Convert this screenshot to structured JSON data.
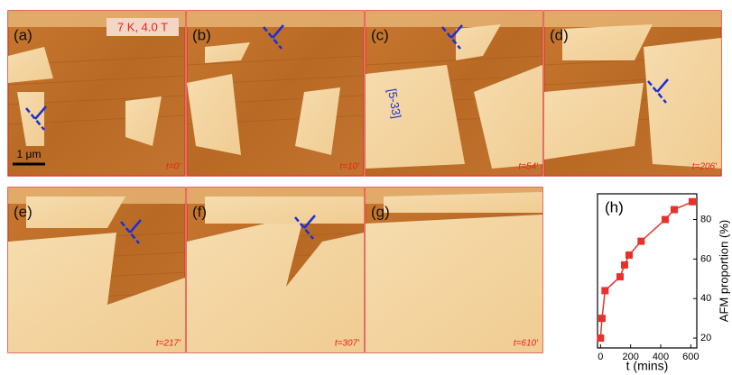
{
  "panels": [
    {
      "label": "(a)",
      "time": "t=0′"
    },
    {
      "label": "(b)",
      "time": "t=10′"
    },
    {
      "label": "(c)",
      "time": "t=54′"
    },
    {
      "label": "(d)",
      "time": "t=206′"
    },
    {
      "label": "(e)",
      "time": "t=217′"
    },
    {
      "label": "(f)",
      "time": "t=307′"
    },
    {
      "label": "(g)",
      "time": "t=610′"
    }
  ],
  "annotations": {
    "conditions": "7 K, 4.0 T",
    "scale_bar": "1 μm",
    "direction": "[5-33]"
  },
  "chart_data": {
    "type": "line",
    "label": "(h)",
    "color": "#e8312a",
    "x": [
      0,
      10,
      30,
      130,
      160,
      190,
      270,
      430,
      490,
      610
    ],
    "values": [
      20,
      30,
      44,
      51,
      57,
      62,
      69,
      80,
      85,
      89
    ],
    "xlabel": "t (mins)",
    "ylabel": "AFM proportion (%)",
    "xlim": [
      -20,
      640
    ],
    "ylim": [
      15,
      93
    ],
    "xticks": [
      0,
      200,
      400,
      600
    ],
    "yticks": [
      20,
      40,
      60,
      80
    ]
  }
}
